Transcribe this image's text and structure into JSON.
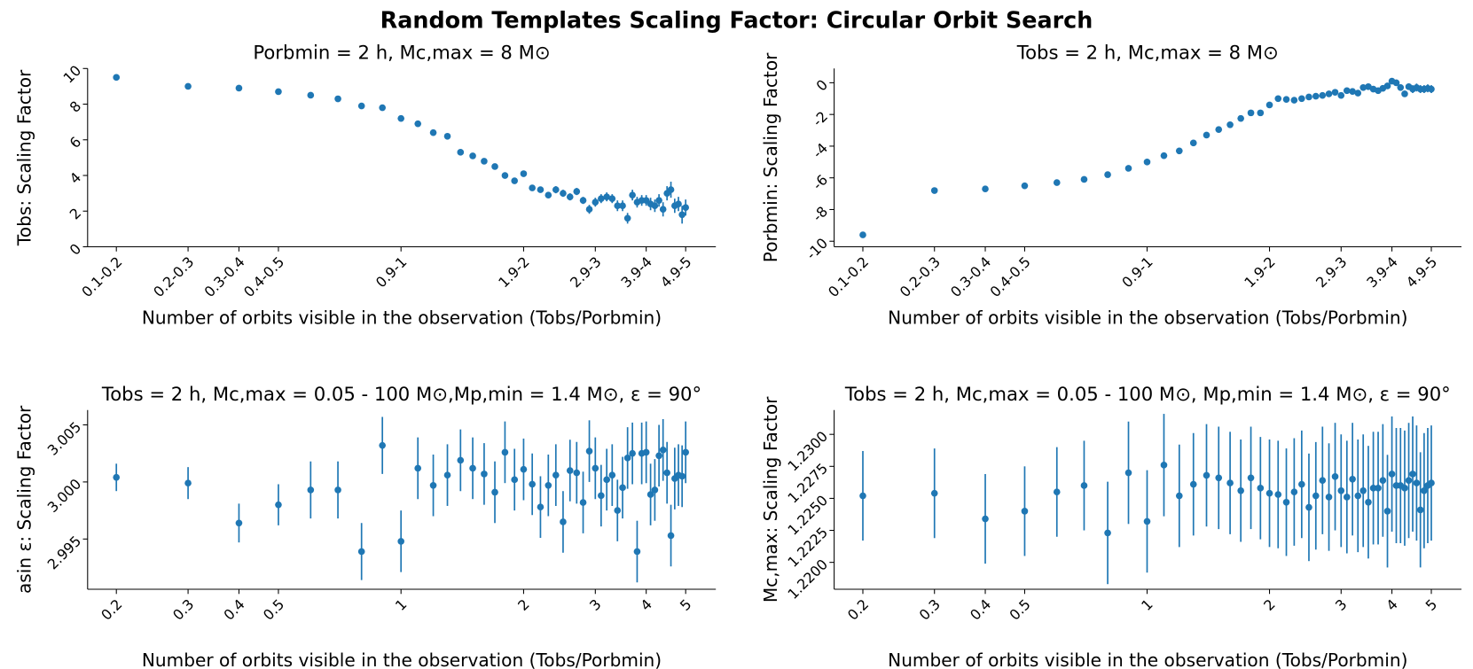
{
  "title": "Random Templates Scaling Factor: Circular Orbit Search",
  "chart_data": [
    {
      "type": "errorbar",
      "title": "Porbmin = 2 h, Mc,max = 8 M⊙",
      "xlabel": "Number of orbits visible in the observation (Tobs/Porbmin)",
      "ylabel": "Tobs: Scaling Factor",
      "color": "#1f77b4",
      "xscale": "log",
      "x": [
        0.2,
        0.3,
        0.4,
        0.5,
        0.6,
        0.7,
        0.8,
        0.9,
        1,
        1.1,
        1.2,
        1.3,
        1.4,
        1.5,
        1.6,
        1.7,
        1.8,
        1.9,
        2,
        2.1,
        2.2,
        2.3,
        2.4,
        2.5,
        2.6,
        2.7,
        2.8,
        2.9,
        3,
        3.1,
        3.2,
        3.3,
        3.4,
        3.5,
        3.6,
        3.7,
        3.8,
        3.9,
        4,
        4.1,
        4.2,
        4.3,
        4.4,
        4.5,
        4.6,
        4.7,
        4.8,
        4.9,
        5
      ],
      "values": [
        9.5,
        9.0,
        8.9,
        8.7,
        8.5,
        8.3,
        7.9,
        7.8,
        7.2,
        6.9,
        6.4,
        6.2,
        5.3,
        5.1,
        4.8,
        4.5,
        4.0,
        3.7,
        4.1,
        3.3,
        3.2,
        2.9,
        3.2,
        3.0,
        2.8,
        3.1,
        2.6,
        2.1,
        2.5,
        2.7,
        2.8,
        2.7,
        2.3,
        2.3,
        1.6,
        2.9,
        2.5,
        2.6,
        2.6,
        2.4,
        2.3,
        2.6,
        2.1,
        3.0,
        3.2,
        2.3,
        2.4,
        1.8,
        2.2
      ],
      "errors": [
        0.1,
        0.1,
        0.1,
        0.1,
        0.1,
        0.1,
        0.1,
        0.1,
        0.1,
        0.1,
        0.1,
        0.1,
        0.1,
        0.1,
        0.1,
        0.12,
        0.12,
        0.12,
        0.15,
        0.15,
        0.15,
        0.15,
        0.2,
        0.2,
        0.2,
        0.2,
        0.2,
        0.25,
        0.25,
        0.25,
        0.25,
        0.25,
        0.3,
        0.3,
        0.3,
        0.3,
        0.3,
        0.3,
        0.3,
        0.35,
        0.35,
        0.35,
        0.4,
        0.4,
        0.45,
        0.4,
        0.4,
        0.5,
        0.45
      ],
      "xlim": [
        0.17,
        5.93
      ],
      "ylim": [
        0,
        10
      ],
      "xticks": [
        {
          "value": 0.2,
          "label": "0.1-0.2"
        },
        {
          "value": 0.3,
          "label": "0.2-0.3"
        },
        {
          "value": 0.4,
          "label": "0.3-0.4"
        },
        {
          "value": 0.5,
          "label": "0.4-0.5"
        },
        {
          "value": 1,
          "label": "0.9-1"
        },
        {
          "value": 2,
          "label": "1.9-2"
        },
        {
          "value": 3,
          "label": "2.9-3"
        },
        {
          "value": 4,
          "label": "3.9-4"
        },
        {
          "value": 5,
          "label": "4.9-5"
        }
      ],
      "yticks": [
        0,
        2,
        4,
        6,
        8,
        10
      ]
    },
    {
      "type": "errorbar",
      "title": "Tobs = 2 h, Mc,max = 8 M⊙",
      "xlabel": "Number of orbits visible in the observation (Tobs/Porbmin)",
      "ylabel": "Porbmin: Scaling Factor",
      "color": "#1f77b4",
      "xscale": "log",
      "x": [
        0.2,
        0.3,
        0.4,
        0.5,
        0.6,
        0.7,
        0.8,
        0.9,
        1,
        1.1,
        1.2,
        1.3,
        1.4,
        1.5,
        1.6,
        1.7,
        1.8,
        1.9,
        2,
        2.1,
        2.2,
        2.3,
        2.4,
        2.5,
        2.6,
        2.7,
        2.8,
        2.9,
        3,
        3.1,
        3.2,
        3.3,
        3.4,
        3.5,
        3.6,
        3.7,
        3.8,
        3.9,
        4,
        4.1,
        4.2,
        4.3,
        4.4,
        4.5,
        4.6,
        4.7,
        4.8,
        4.9,
        5
      ],
      "values": [
        -9.6,
        -6.8,
        -6.7,
        -6.5,
        -6.3,
        -6.1,
        -5.8,
        -5.4,
        -5.0,
        -4.6,
        -4.3,
        -3.8,
        -3.3,
        -2.95,
        -2.65,
        -2.25,
        -1.9,
        -1.9,
        -1.4,
        -1.0,
        -1.05,
        -1.1,
        -1.0,
        -0.9,
        -0.85,
        -0.8,
        -0.7,
        -0.6,
        -0.8,
        -0.5,
        -0.55,
        -0.65,
        -0.3,
        -0.25,
        -0.4,
        -0.5,
        -0.35,
        -0.2,
        0.1,
        0,
        -0.3,
        -0.7,
        -0.25,
        -0.4,
        -0.3,
        -0.4,
        -0.4,
        -0.35,
        -0.4
      ],
      "errors": [
        0.1,
        0.1,
        0.1,
        0.1,
        0.1,
        0.1,
        0.1,
        0.1,
        0.1,
        0.1,
        0.1,
        0.1,
        0.1,
        0.1,
        0.1,
        0.1,
        0.1,
        0.1,
        0.12,
        0.12,
        0.12,
        0.12,
        0.12,
        0.12,
        0.12,
        0.12,
        0.12,
        0.12,
        0.15,
        0.15,
        0.15,
        0.15,
        0.15,
        0.15,
        0.15,
        0.15,
        0.15,
        0.15,
        0.2,
        0.2,
        0.2,
        0.2,
        0.2,
        0.25,
        0.25,
        0.25,
        0.25,
        0.25,
        0.25
      ],
      "xlim": [
        0.17,
        5.93
      ],
      "ylim": [
        -10.35,
        0.9
      ],
      "xticks": [
        {
          "value": 0.2,
          "label": "0.1-0.2"
        },
        {
          "value": 0.3,
          "label": "0.2-0.3"
        },
        {
          "value": 0.4,
          "label": "0.3-0.4"
        },
        {
          "value": 0.5,
          "label": "0.4-0.5"
        },
        {
          "value": 1,
          "label": "0.9-1"
        },
        {
          "value": 2,
          "label": "1.9-2"
        },
        {
          "value": 3,
          "label": "2.9-3"
        },
        {
          "value": 4,
          "label": "3.9-4"
        },
        {
          "value": 5,
          "label": "4.9-5"
        }
      ],
      "yticks": [
        0,
        -2,
        -4,
        -6,
        -8,
        -10
      ]
    },
    {
      "type": "errorbar",
      "title": "Tobs = 2 h, Mc,max = 0.05 - 100 M⊙,Mp,min = 1.4 M⊙, ε = 90°",
      "xlabel": "Number of orbits visible in the observation (Tobs/Porbmin)",
      "ylabel": "asin ε: Scaling Factor",
      "color": "#1f77b4",
      "xscale": "log",
      "x": [
        0.2,
        0.3,
        0.4,
        0.5,
        0.6,
        0.7,
        0.8,
        0.9,
        1,
        1.1,
        1.2,
        1.3,
        1.4,
        1.5,
        1.6,
        1.7,
        1.8,
        1.9,
        2,
        2.1,
        2.2,
        2.3,
        2.4,
        2.5,
        2.6,
        2.7,
        2.8,
        2.9,
        3,
        3.1,
        3.2,
        3.3,
        3.4,
        3.5,
        3.6,
        3.7,
        3.8,
        3.9,
        4,
        4.1,
        4.2,
        4.3,
        4.4,
        4.5,
        4.6,
        4.7,
        4.8,
        4.9,
        5
      ],
      "values": [
        3.0004,
        2.9999,
        2.9964,
        2.998,
        2.9993,
        2.9993,
        2.9939,
        3.0032,
        2.9948,
        3.0012,
        2.9997,
        3.0006,
        3.0019,
        3.0012,
        3.0007,
        2.9991,
        3.0026,
        3.0002,
        3.0011,
        2.9998,
        2.9978,
        2.9997,
        3.0006,
        2.9965,
        3.001,
        3.0008,
        2.9982,
        3.0027,
        3.0012,
        2.9988,
        3.0002,
        3.0006,
        2.9975,
        2.9995,
        3.0021,
        3.0025,
        2.9939,
        3.0025,
        3.0026,
        2.9989,
        2.9993,
        3.0023,
        3.0028,
        3.0008,
        2.9953,
        3.0003,
        3.0006,
        3.0005,
        3.0026
      ],
      "errors": [
        0.0012,
        0.0014,
        0.0017,
        0.0018,
        0.0025,
        0.0025,
        0.0025,
        0.0025,
        0.0027,
        0.0027,
        0.0027,
        0.0027,
        0.0027,
        0.0027,
        0.0027,
        0.0027,
        0.0027,
        0.0027,
        0.0027,
        0.0027,
        0.0027,
        0.0027,
        0.0027,
        0.0027,
        0.0027,
        0.0027,
        0.0027,
        0.0027,
        0.0027,
        0.0027,
        0.0027,
        0.0027,
        0.0027,
        0.0027,
        0.0027,
        0.0027,
        0.0027,
        0.0027,
        0.0027,
        0.0027,
        0.0027,
        0.0027,
        0.0027,
        0.0027,
        0.0027,
        0.0027,
        0.0027,
        0.0027,
        0.0027
      ],
      "xlim": [
        0.17,
        5.93
      ],
      "ylim": [
        2.9906,
        3.0063
      ],
      "xticks": [
        0.2,
        0.3,
        0.4,
        0.5,
        1,
        2,
        3,
        4,
        5
      ],
      "yticks": [
        2.995,
        {
          "value": 3,
          "label": "3.000"
        },
        3.005
      ]
    },
    {
      "type": "errorbar",
      "title": "Tobs = 2 h, Mc,max = 0.05 - 100 M⊙, Mp,min = 1.4 M⊙, ε = 90°",
      "xlabel": "Number of orbits visible in the observation (Tobs/Porbmin)",
      "ylabel": "Mc,max: Scaling Factor",
      "color": "#1f77b4",
      "xscale": "log",
      "x": [
        0.2,
        0.3,
        0.4,
        0.5,
        0.6,
        0.7,
        0.8,
        0.9,
        1,
        1.1,
        1.2,
        1.3,
        1.4,
        1.5,
        1.6,
        1.7,
        1.8,
        1.9,
        2,
        2.1,
        2.2,
        2.3,
        2.4,
        2.5,
        2.6,
        2.7,
        2.8,
        2.9,
        3,
        3.1,
        3.2,
        3.3,
        3.4,
        3.5,
        3.6,
        3.7,
        3.8,
        3.9,
        4,
        4.1,
        4.2,
        4.3,
        4.4,
        4.5,
        4.6,
        4.7,
        4.8,
        4.9,
        5
      ],
      "values": [
        1.2252,
        1.2254,
        1.2234,
        1.224,
        1.2255,
        1.226,
        1.2223,
        1.227,
        1.2232,
        1.2276,
        1.2252,
        1.2261,
        1.2268,
        1.2266,
        1.2262,
        1.2256,
        1.2266,
        1.2258,
        1.2254,
        1.2253,
        1.2247,
        1.2255,
        1.2261,
        1.2243,
        1.2252,
        1.2264,
        1.2251,
        1.2267,
        1.2256,
        1.2251,
        1.2265,
        1.2252,
        1.2256,
        1.2247,
        1.2258,
        1.2258,
        1.2264,
        1.224,
        1.2269,
        1.226,
        1.226,
        1.2258,
        1.2264,
        1.2269,
        1.2262,
        1.2241,
        1.2256,
        1.226,
        1.2262
      ],
      "errors": [
        0.0035,
        0.0035,
        0.0035,
        0.0035,
        0.0035,
        0.0035,
        0.004,
        0.004,
        0.004,
        0.004,
        0.004,
        0.004,
        0.004,
        0.004,
        0.004,
        0.004,
        0.004,
        0.004,
        0.0042,
        0.0042,
        0.0042,
        0.0042,
        0.0042,
        0.0042,
        0.0042,
        0.0042,
        0.0042,
        0.0042,
        0.0044,
        0.0044,
        0.0044,
        0.0044,
        0.0044,
        0.0044,
        0.0044,
        0.0044,
        0.0044,
        0.0044,
        0.0045,
        0.0045,
        0.0045,
        0.0045,
        0.0045,
        0.0045,
        0.0045,
        0.0045,
        0.0045,
        0.0045,
        0.0045
      ],
      "xlim": [
        0.17,
        5.93
      ],
      "ylim": [
        1.2179,
        1.2319
      ],
      "xticks": [
        0.2,
        0.3,
        0.4,
        0.5,
        1,
        2,
        3,
        4,
        5
      ],
      "yticks": [
        {
          "value": 1.22,
          "label": "1.2200"
        },
        1.2225,
        {
          "value": 1.225,
          "label": "1.2250"
        },
        1.2275,
        {
          "value": 1.23,
          "label": "1.2300"
        }
      ]
    }
  ]
}
